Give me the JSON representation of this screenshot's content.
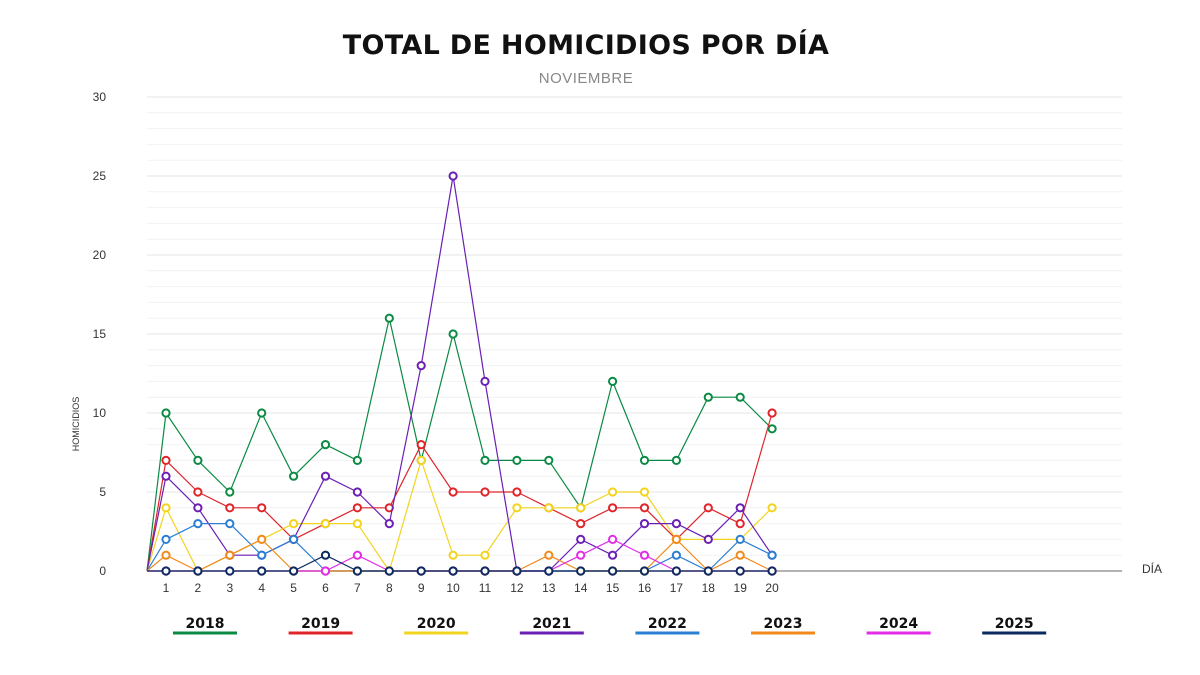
{
  "chart_data": {
    "type": "line",
    "title": "TOTAL DE HOMICIDIOS POR DÍA",
    "subtitle": "NOVIEMBRE",
    "ylabel": "HOMICIDIOS",
    "xlabel": "DÍA",
    "ylim": [
      0,
      30
    ],
    "yticks": [
      0,
      5,
      10,
      15,
      20,
      25,
      30
    ],
    "x": [
      1,
      2,
      3,
      4,
      5,
      6,
      7,
      8,
      9,
      10,
      11,
      12,
      13,
      14,
      15,
      16,
      17,
      18,
      19,
      20
    ],
    "grid": true,
    "legend_position": "bottom",
    "series": [
      {
        "name": "2018",
        "color": "#0a8a43",
        "values": [
          10,
          7,
          5,
          10,
          6,
          8,
          7,
          16,
          7,
          15,
          7,
          7,
          7,
          4,
          12,
          7,
          7,
          11,
          11,
          9
        ]
      },
      {
        "name": "2019",
        "color": "#e0252a",
        "values": [
          7,
          5,
          4,
          4,
          2,
          3,
          4,
          4,
          8,
          5,
          5,
          5,
          4,
          3,
          4,
          4,
          2,
          4,
          3,
          10
        ]
      },
      {
        "name": "2020",
        "color": "#f2d41f",
        "values": [
          4,
          0,
          1,
          2,
          3,
          3,
          3,
          0,
          7,
          1,
          1,
          4,
          4,
          4,
          5,
          5,
          2,
          2,
          2,
          4
        ]
      },
      {
        "name": "2021",
        "color": "#6a1fb5",
        "values": [
          6,
          4,
          1,
          1,
          2,
          6,
          5,
          3,
          13,
          25,
          12,
          0,
          0,
          2,
          1,
          3,
          3,
          2,
          4,
          1
        ]
      },
      {
        "name": "2022",
        "color": "#2a7fd4",
        "values": [
          2,
          3,
          3,
          1,
          2,
          0,
          0,
          0,
          0,
          0,
          0,
          0,
          0,
          0,
          0,
          0,
          1,
          0,
          2,
          1
        ]
      },
      {
        "name": "2023",
        "color": "#f08a1c",
        "values": [
          1,
          0,
          1,
          2,
          0,
          0,
          0,
          0,
          0,
          0,
          0,
          0,
          1,
          0,
          0,
          0,
          2,
          0,
          1,
          0
        ]
      },
      {
        "name": "2024",
        "color": "#e22ce6",
        "values": [
          0,
          0,
          0,
          0,
          0,
          0,
          1,
          0,
          0,
          0,
          0,
          0,
          0,
          1,
          2,
          1,
          0,
          0,
          0,
          0
        ]
      },
      {
        "name": "2025",
        "color": "#0b2a5e",
        "values": [
          0,
          0,
          0,
          0,
          0,
          1,
          0,
          0,
          0,
          0,
          0,
          0,
          0,
          0,
          0,
          0,
          0,
          0,
          0,
          0
        ]
      }
    ]
  }
}
